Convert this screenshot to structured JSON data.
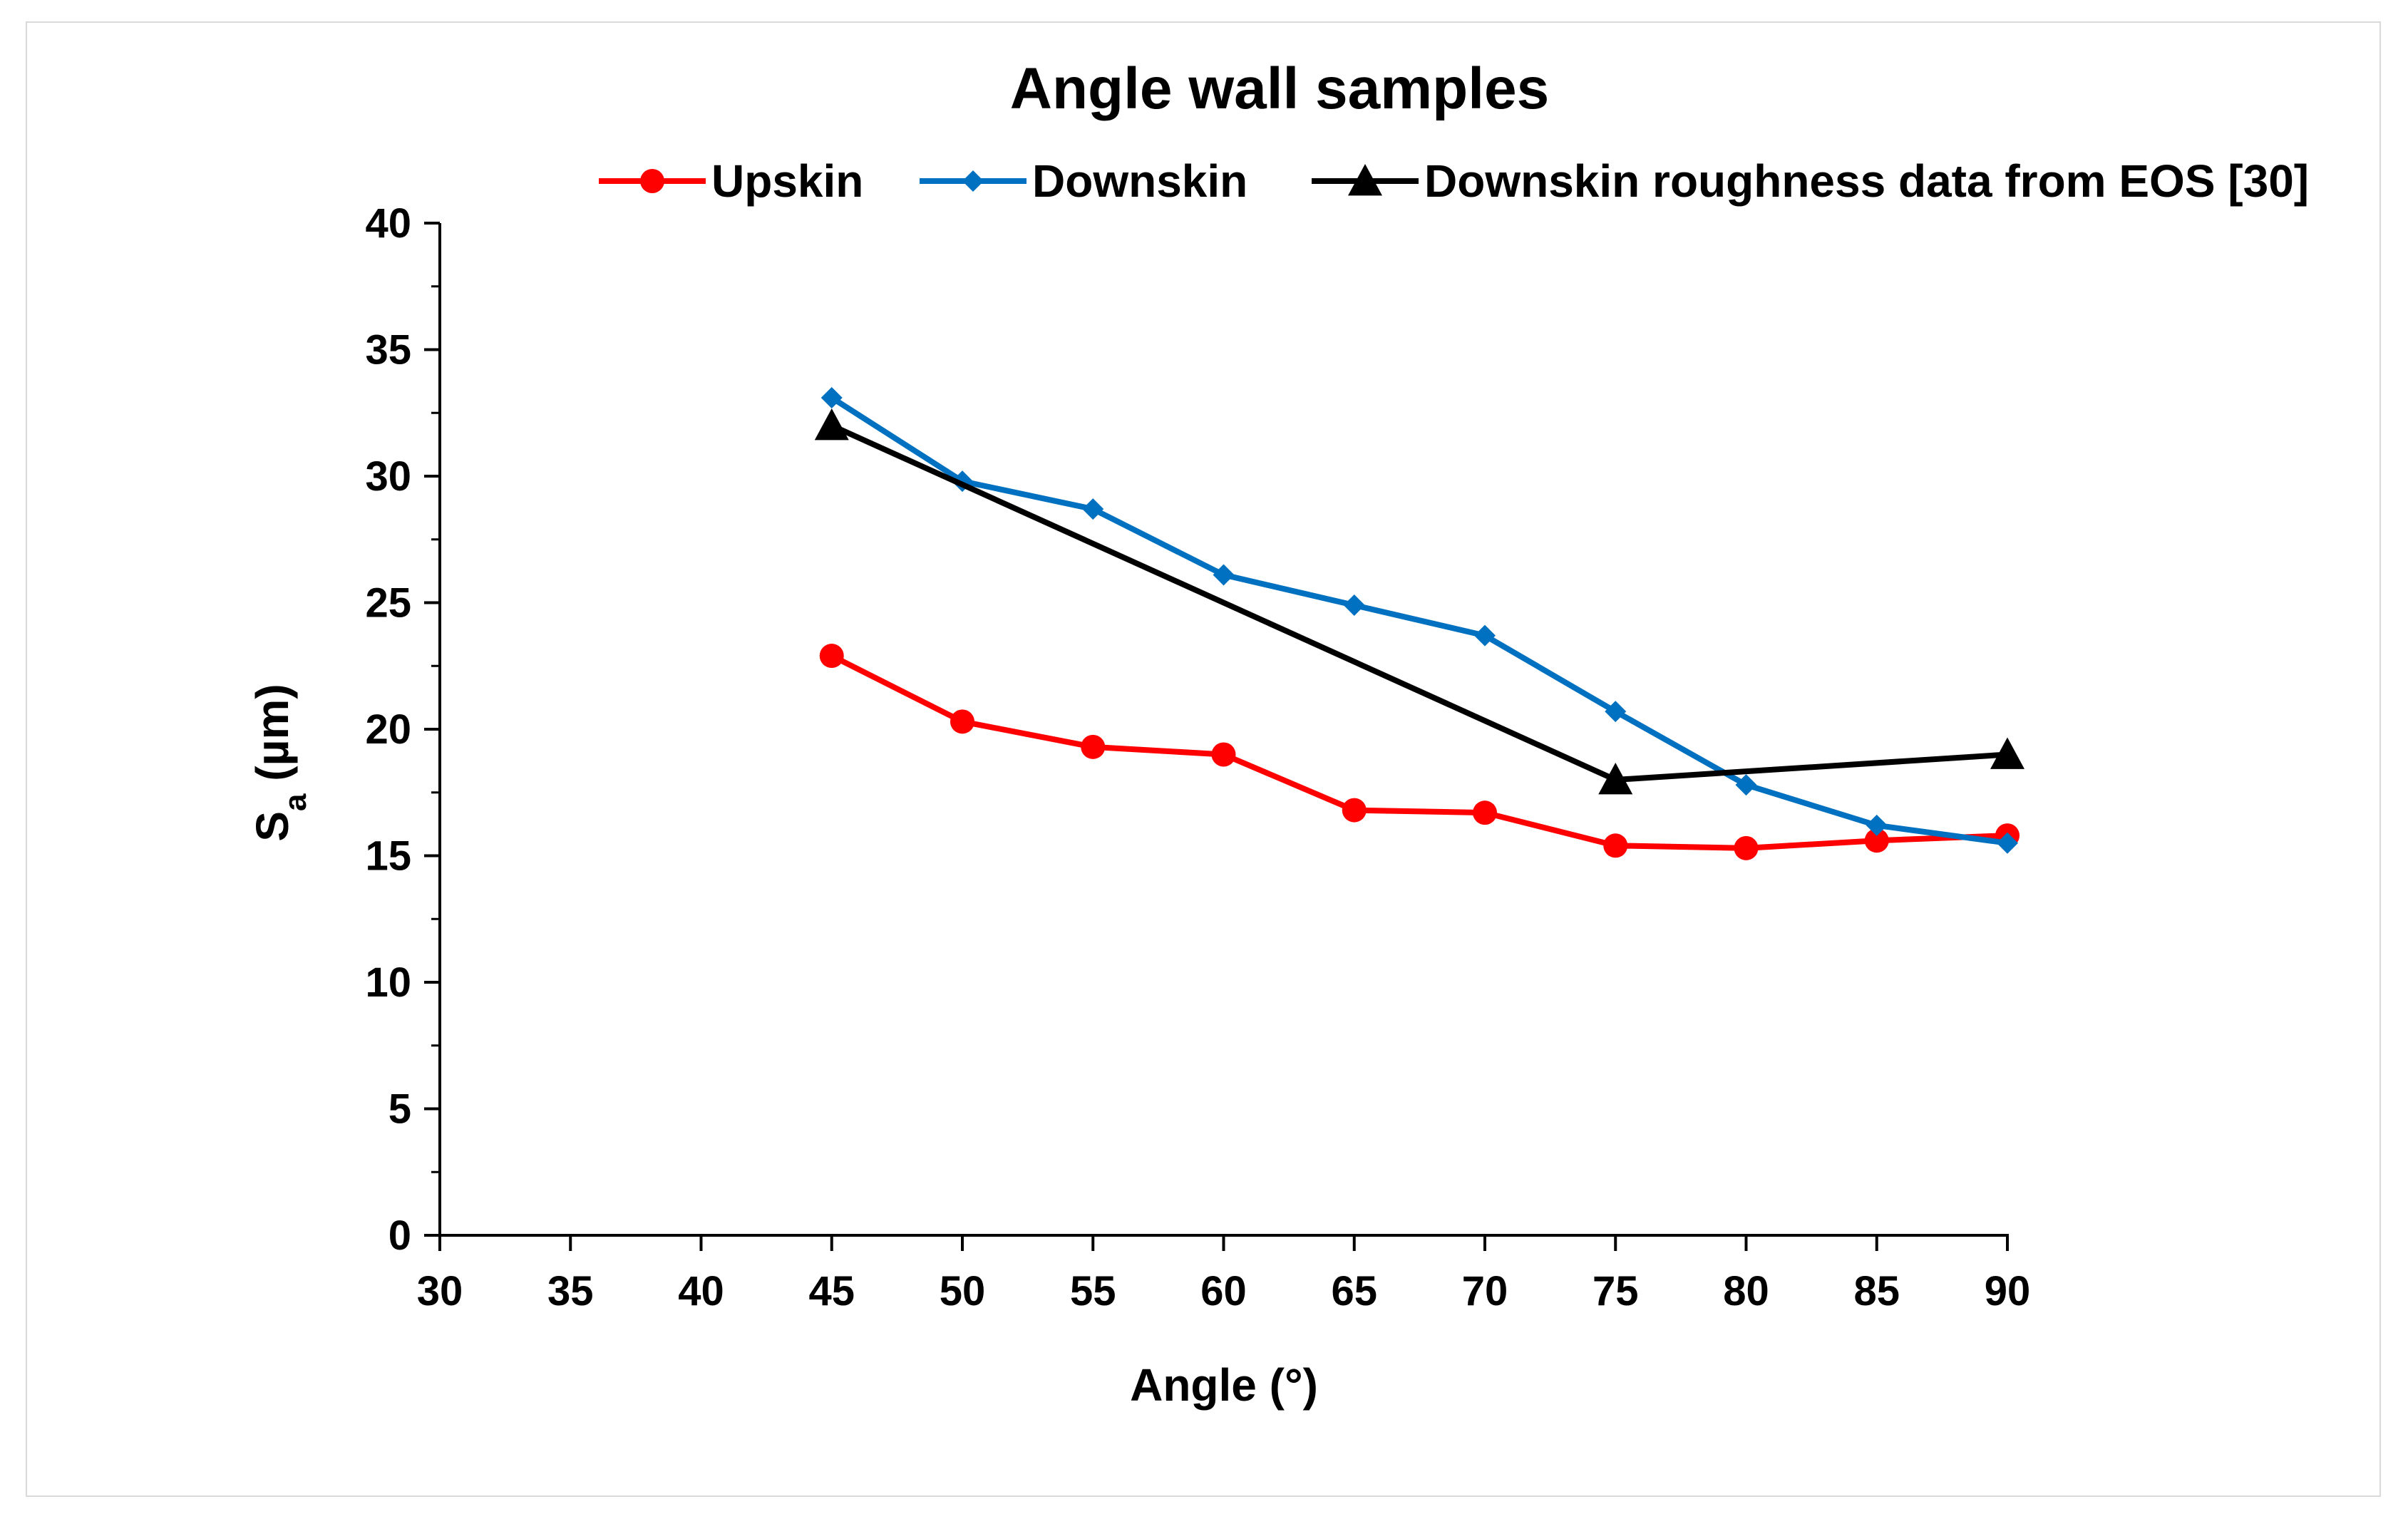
{
  "chart_data": {
    "type": "line",
    "title": "Angle wall samples",
    "xlabel": "Angle (°)",
    "ylabel_main": "S",
    "ylabel_sub": "a",
    "ylabel_unit": " (µm)",
    "xlim": [
      30,
      90
    ],
    "ylim": [
      0,
      40
    ],
    "xticks": [
      "30",
      "35",
      "40",
      "45",
      "50",
      "55",
      "60",
      "65",
      "70",
      "75",
      "80",
      "85",
      "90"
    ],
    "yticks": [
      "0",
      "5",
      "10",
      "15",
      "20",
      "25",
      "30",
      "35",
      "40"
    ],
    "grid": false,
    "legend_position": "top",
    "series": [
      {
        "name": "Upskin",
        "color": "#ff0000",
        "marker": "circle",
        "x": [
          45,
          50,
          55,
          60,
          65,
          70,
          75,
          80,
          85,
          90
        ],
        "y": [
          22.9,
          20.3,
          19.3,
          19.0,
          16.8,
          16.7,
          15.4,
          15.3,
          15.6,
          15.8
        ]
      },
      {
        "name": "Downskin",
        "color": "#0070c0",
        "marker": "diamond",
        "x": [
          45,
          50,
          55,
          60,
          65,
          70,
          75,
          80,
          85,
          90
        ],
        "y": [
          33.1,
          29.8,
          28.7,
          26.1,
          24.9,
          23.7,
          20.7,
          17.8,
          16.2,
          15.5
        ]
      },
      {
        "name": "Downskin roughness data from EOS [30]",
        "color": "#000000",
        "marker": "triangle",
        "x": [
          45,
          75,
          90
        ],
        "y": [
          32.0,
          18.0,
          19.0
        ]
      }
    ]
  }
}
